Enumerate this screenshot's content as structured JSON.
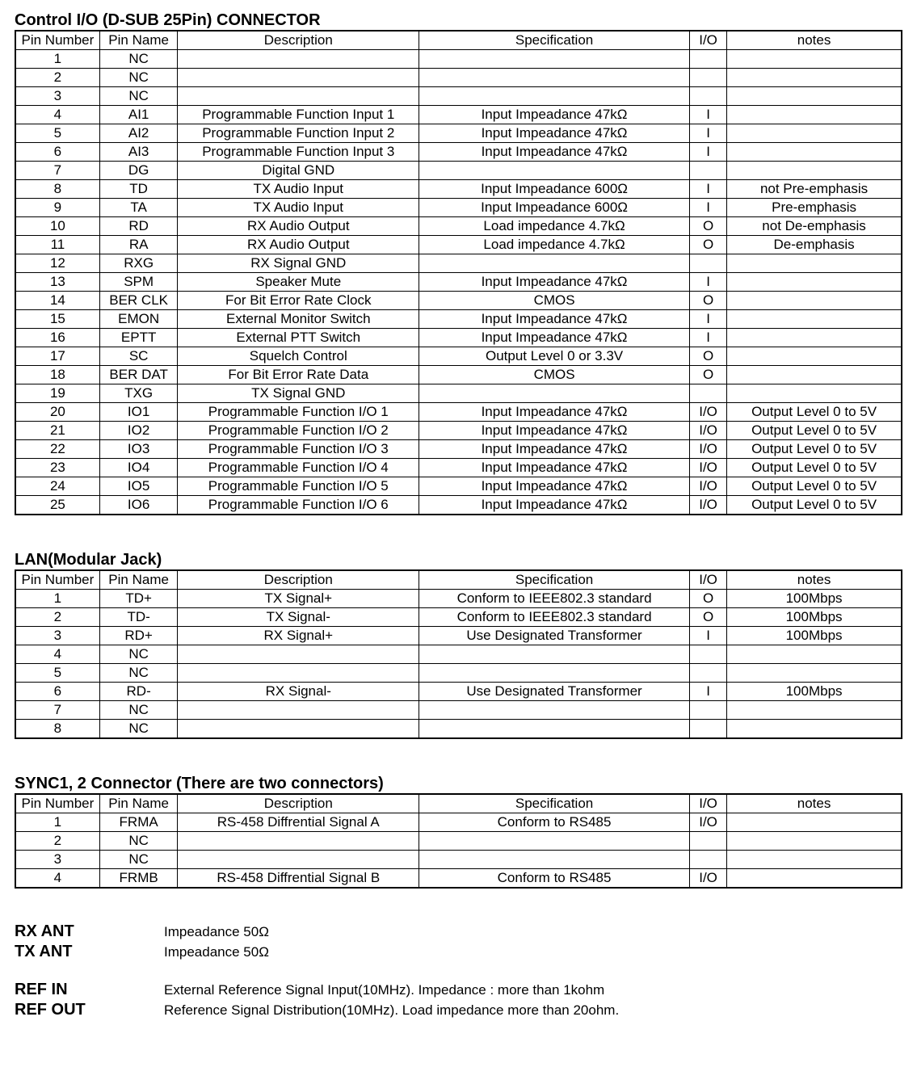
{
  "section1": {
    "title": "Control I/O (D-SUB 25Pin) CONNECTOR",
    "headers": [
      "Pin Number",
      "Pin Name",
      "Description",
      "Specification",
      "I/O",
      "notes"
    ],
    "rows": [
      [
        "1",
        "NC",
        "",
        "",
        "",
        ""
      ],
      [
        "2",
        "NC",
        "",
        "",
        "",
        ""
      ],
      [
        "3",
        "NC",
        "",
        "",
        "",
        ""
      ],
      [
        "4",
        "AI1",
        "Programmable Function Input 1",
        "Input Impeadance 47kΩ",
        "I",
        ""
      ],
      [
        "5",
        "AI2",
        "Programmable Function Input 2",
        "Input Impeadance 47kΩ",
        "I",
        ""
      ],
      [
        "6",
        "AI3",
        "Programmable Function Input 3",
        "Input Impeadance 47kΩ",
        "I",
        ""
      ],
      [
        "7",
        "DG",
        "Digital GND",
        "",
        "",
        ""
      ],
      [
        "8",
        "TD",
        "TX Audio Input",
        "Input Impeadance 600Ω",
        "I",
        "not Pre-emphasis"
      ],
      [
        "9",
        "TA",
        "TX Audio Input",
        "Input Impeadance 600Ω",
        "I",
        "Pre-emphasis"
      ],
      [
        "10",
        "RD",
        "RX Audio Output",
        "Load impedance 4.7kΩ",
        "O",
        "not De-emphasis"
      ],
      [
        "11",
        "RA",
        "RX Audio Output",
        "Load impedance 4.7kΩ",
        "O",
        "De-emphasis"
      ],
      [
        "12",
        "RXG",
        "RX Signal GND",
        "",
        "",
        ""
      ],
      [
        "13",
        "SPM",
        "Speaker Mute",
        "Input Impeadance 47kΩ",
        "I",
        ""
      ],
      [
        "14",
        "BER CLK",
        "For Bit Error Rate Clock",
        "CMOS",
        "O",
        ""
      ],
      [
        "15",
        "EMON",
        "External Monitor Switch",
        "Input Impeadance 47kΩ",
        "I",
        ""
      ],
      [
        "16",
        "EPTT",
        "External PTT Switch",
        "Input Impeadance 47kΩ",
        "I",
        ""
      ],
      [
        "17",
        "SC",
        "Squelch Control",
        "Output Level 0 or 3.3V",
        "O",
        ""
      ],
      [
        "18",
        "BER DAT",
        "For Bit Error Rate Data",
        "CMOS",
        "O",
        ""
      ],
      [
        "19",
        "TXG",
        "TX Signal GND",
        "",
        "",
        ""
      ],
      [
        "20",
        "IO1",
        "Programmable Function I/O 1",
        "Input Impeadance 47kΩ",
        "I/O",
        "Output Level 0 to 5V"
      ],
      [
        "21",
        "IO2",
        "Programmable Function I/O 2",
        "Input Impeadance 47kΩ",
        "I/O",
        "Output Level 0 to 5V"
      ],
      [
        "22",
        "IO3",
        "Programmable Function I/O 3",
        "Input Impeadance 47kΩ",
        "I/O",
        "Output Level 0 to 5V"
      ],
      [
        "23",
        "IO4",
        "Programmable Function I/O 4",
        "Input Impeadance 47kΩ",
        "I/O",
        "Output Level 0 to 5V"
      ],
      [
        "24",
        "IO5",
        "Programmable Function I/O 5",
        "Input Impeadance 47kΩ",
        "I/O",
        "Output Level 0 to 5V"
      ],
      [
        "25",
        "IO6",
        "Programmable Function I/O 6",
        "Input Impeadance 47kΩ",
        "I/O",
        "Output Level 0 to 5V"
      ]
    ]
  },
  "section2": {
    "title": "LAN(Modular Jack)",
    "headers": [
      "Pin Number",
      "Pin Name",
      "Description",
      "Specification",
      "I/O",
      "notes"
    ],
    "rows": [
      [
        "1",
        "TD+",
        "TX Signal+",
        "Conform to IEEE802.3 standard",
        "O",
        "100Mbps"
      ],
      [
        "2",
        "TD-",
        "TX Signal-",
        "Conform to IEEE802.3 standard",
        "O",
        "100Mbps"
      ],
      [
        "3",
        "RD+",
        "RX Signal+",
        "Use Designated Transformer",
        "I",
        "100Mbps"
      ],
      [
        "4",
        "NC",
        "",
        "",
        "",
        ""
      ],
      [
        "5",
        "NC",
        "",
        "",
        "",
        ""
      ],
      [
        "6",
        "RD-",
        "RX Signal-",
        "Use Designated Transformer",
        "I",
        "100Mbps"
      ],
      [
        "7",
        "NC",
        "",
        "",
        "",
        ""
      ],
      [
        "8",
        "NC",
        "",
        "",
        "",
        ""
      ]
    ]
  },
  "section3": {
    "title": "SYNC1, 2 Connector (There are two connectors)",
    "headers": [
      "Pin Number",
      "Pin Name",
      "Description",
      "Specification",
      "I/O",
      "notes"
    ],
    "rows": [
      [
        "1",
        "FRMA",
        "RS-458 Diffrential Signal A",
        "Conform to RS485",
        "I/O",
        ""
      ],
      [
        "2",
        "NC",
        "",
        "",
        "",
        ""
      ],
      [
        "3",
        "NC",
        "",
        "",
        "",
        ""
      ],
      [
        "4",
        "FRMB",
        "RS-458 Diffrential Signal B",
        "Conform to RS485",
        "I/O",
        ""
      ]
    ]
  },
  "misc": {
    "rxant_label": "RX ANT",
    "rxant_value": "Impeadance 50Ω",
    "txant_label": "TX ANT",
    "txant_value": "Impeadance 50Ω",
    "refin_label": "REF IN",
    "refin_value": "External Reference Signal Input(10MHz). Impedance : more than 1kohm",
    "refout_label": "REF OUT",
    "refout_value": "Reference Signal Distribution(10MHz). Load impedance more than 20ohm."
  }
}
